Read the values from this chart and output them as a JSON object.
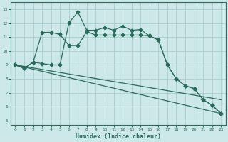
{
  "xlabel": "Humidex (Indice chaleur)",
  "bg_color": "#cde8e8",
  "grid_color": "#aacccc",
  "line_color": "#2a6b5a",
  "spine_color": "#2a6b5a",
  "xlim": [
    -0.5,
    23.5
  ],
  "ylim": [
    4.7,
    13.5
  ],
  "yticks": [
    5,
    6,
    7,
    8,
    9,
    10,
    11,
    12,
    13
  ],
  "xticks": [
    0,
    1,
    2,
    3,
    4,
    5,
    6,
    7,
    8,
    9,
    10,
    11,
    12,
    13,
    14,
    15,
    16,
    17,
    18,
    19,
    20,
    21,
    22,
    23
  ],
  "line1_x": [
    0,
    1,
    2,
    3,
    4,
    5,
    6,
    7,
    8,
    9,
    10,
    11,
    12,
    13,
    14,
    15,
    16,
    17,
    18,
    19,
    20,
    21,
    22,
    23
  ],
  "line1_y": [
    9.0,
    8.75,
    9.2,
    11.35,
    11.35,
    11.2,
    10.4,
    10.4,
    11.4,
    11.15,
    11.15,
    11.15,
    11.15,
    11.15,
    11.15,
    11.1,
    10.8,
    9.0,
    8.0,
    7.5,
    7.3,
    6.5,
    6.1,
    5.5
  ],
  "line2_x": [
    0,
    1,
    2,
    3,
    4,
    5,
    6,
    7,
    8,
    9,
    10,
    11,
    12,
    13,
    14,
    15,
    16,
    17,
    18,
    19,
    20,
    21,
    22,
    23
  ],
  "line2_y": [
    9.0,
    8.75,
    9.2,
    9.1,
    9.0,
    9.0,
    12.05,
    12.8,
    11.5,
    11.5,
    11.7,
    11.5,
    11.8,
    11.5,
    11.55,
    11.1,
    10.8,
    9.0,
    8.0,
    7.5,
    7.3,
    6.5,
    6.1,
    5.5
  ],
  "line3_x": [
    0,
    23
  ],
  "line3_y": [
    9.0,
    5.5
  ],
  "line4_x": [
    0,
    23
  ],
  "line4_y": [
    9.0,
    6.5
  ]
}
